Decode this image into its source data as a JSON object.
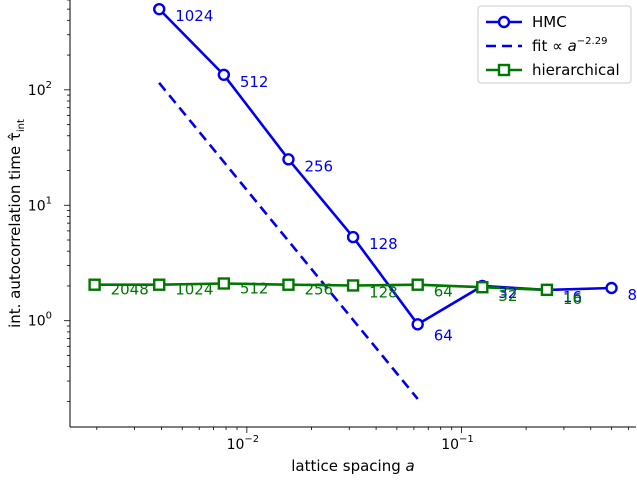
{
  "chart_data": {
    "type": "line",
    "xlabel": "lattice spacing a",
    "ylabel": "int. autocorrelation time τ̂_int",
    "xscale": "log",
    "yscale": "log",
    "xlim": [
      0.0015,
      0.65
    ],
    "ylim": [
      0.12,
      600
    ],
    "x_ticks": [
      {
        "value": 0.01,
        "label_base": "10",
        "label_exp": "−2"
      },
      {
        "value": 0.1,
        "label_base": "10",
        "label_exp": "−1"
      }
    ],
    "y_ticks": [
      {
        "value": 1,
        "label_base": "10",
        "label_exp": "0"
      },
      {
        "value": 10,
        "label_base": "10",
        "label_exp": "1"
      },
      {
        "value": 100,
        "label_base": "10",
        "label_exp": "2"
      }
    ],
    "grid": false,
    "legend_position": "top-right",
    "series": [
      {
        "name": "HMC",
        "color": "#0000ee",
        "marker": "circle",
        "x": [
          0.00390625,
          0.0078125,
          0.015625,
          0.03125,
          0.0625,
          0.125,
          0.25,
          0.5
        ],
        "y": [
          500,
          135,
          25,
          5.3,
          0.93,
          2.0,
          1.85,
          1.92
        ],
        "point_labels": [
          "1024",
          "512",
          "256",
          "128",
          "64",
          "32",
          "16",
          "8"
        ]
      },
      {
        "name": "fit ∝ a^−2.29",
        "legend_prefix": "fit",
        "legend_math": "∝ a",
        "legend_exp": "−2.29",
        "color": "#0000ee",
        "linestyle": "dashed",
        "x": [
          0.0039,
          0.0625
        ],
        "y": [
          115,
          0.21
        ]
      },
      {
        "name": "hierarchical",
        "color": "#007700",
        "marker": "square",
        "x": [
          0.001953125,
          0.00390625,
          0.0078125,
          0.015625,
          0.03125,
          0.0625,
          0.125,
          0.25
        ],
        "y": [
          2.05,
          2.05,
          2.1,
          2.05,
          2.02,
          2.05,
          1.95,
          1.85
        ],
        "point_labels": [
          "2048",
          "1024",
          "512",
          "256",
          "128",
          "64",
          "32",
          "16"
        ]
      }
    ]
  }
}
